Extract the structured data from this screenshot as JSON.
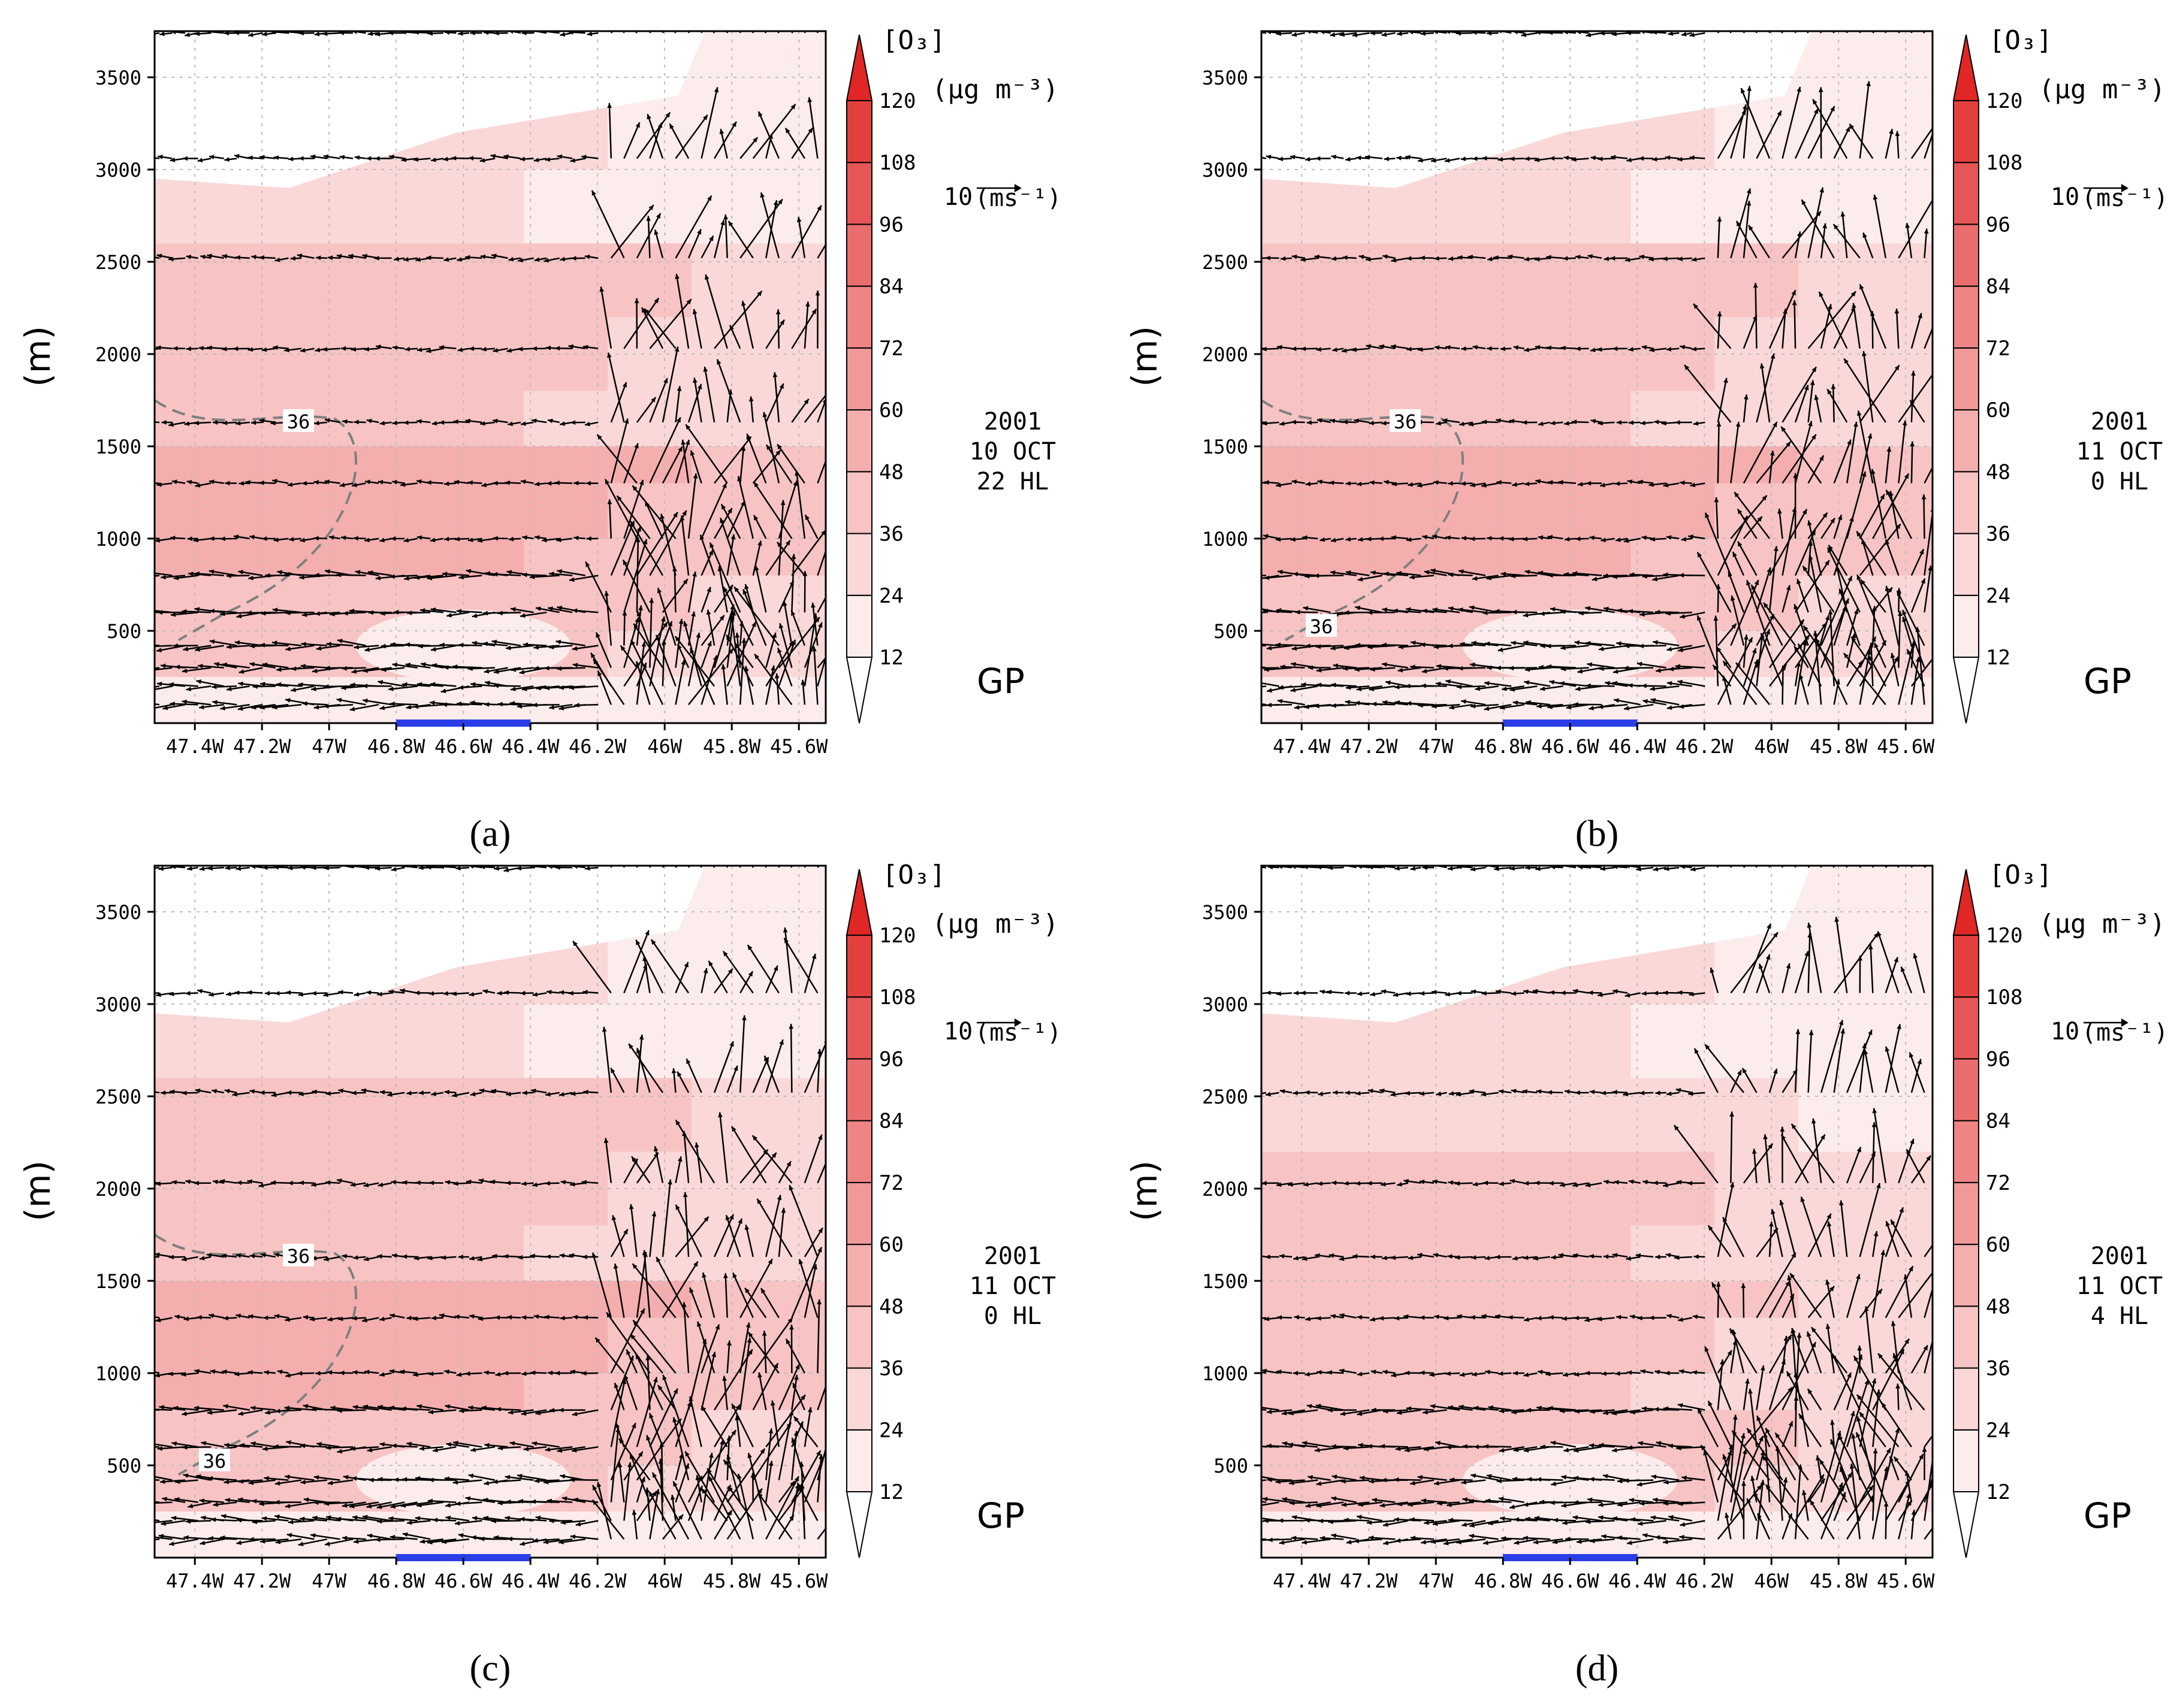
{
  "colors": {
    "shades": [
      "#ffffff",
      "#fdecec",
      "#fad8d8",
      "#f7c3c3",
      "#f4aeae",
      "#f19999",
      "#ee8484",
      "#ea6d6d",
      "#e75656",
      "#e43f3f",
      "#e12626"
    ],
    "vectors": "#000000",
    "contour36": "#7f7f7f",
    "location_bar": "#2a3ee8",
    "grid": "#bdbdbd"
  },
  "chart_data": [
    {
      "type": "vector-contour",
      "panel_label": "(a)",
      "ylabel": "(m)",
      "x_ticks": [
        "47.4W",
        "47.2W",
        "47W",
        "46.8W",
        "46.6W",
        "46.4W",
        "46.2W",
        "46W",
        "45.8W",
        "45.6W"
      ],
      "x_tick_values": [
        -47.4,
        -47.2,
        -47.0,
        -46.8,
        -46.6,
        -46.4,
        -46.2,
        -46.0,
        -45.8,
        -45.6
      ],
      "y_ticks": [
        "500",
        "1000",
        "1500",
        "2000",
        "2500",
        "3000",
        "3500"
      ],
      "y_tick_values": [
        500,
        1000,
        1500,
        2000,
        2500,
        3000,
        3500
      ],
      "xlim": [
        -47.52,
        -45.52
      ],
      "ylim": [
        0,
        3750
      ],
      "colorbar": {
        "title": "[O₃]",
        "unit": "(μg m⁻³)",
        "levels": [
          "12",
          "24",
          "36",
          "48",
          "60",
          "72",
          "84",
          "96",
          "108",
          "120"
        ]
      },
      "vector_ref": {
        "value": "10",
        "unit": "(ms⁻¹)"
      },
      "time": {
        "year": "2001",
        "day": "10  OCT",
        "hour": "22  HL"
      },
      "source": "GP",
      "contour_labels": [
        "36"
      ],
      "location_bar": [
        -46.8,
        -46.4
      ],
      "ozone_profile": [
        [
          0,
          1
        ],
        [
          250,
          3
        ],
        [
          500,
          3
        ],
        [
          800,
          4
        ],
        [
          1000,
          4
        ],
        [
          1300,
          4
        ],
        [
          1500,
          3
        ],
        [
          1800,
          3
        ],
        [
          2200,
          3
        ],
        [
          2600,
          2
        ],
        [
          3000,
          2
        ],
        [
          3400,
          1
        ],
        [
          3750,
          1
        ]
      ]
    },
    {
      "type": "vector-contour",
      "panel_label": "(b)",
      "ylabel": "(m)",
      "x_ticks": [
        "47.4W",
        "47.2W",
        "47W",
        "46.8W",
        "46.6W",
        "46.4W",
        "46.2W",
        "46W",
        "45.8W",
        "45.6W"
      ],
      "x_tick_values": [
        -47.4,
        -47.2,
        -47.0,
        -46.8,
        -46.6,
        -46.4,
        -46.2,
        -46.0,
        -45.8,
        -45.6
      ],
      "y_ticks": [
        "500",
        "1000",
        "1500",
        "2000",
        "2500",
        "3000",
        "3500"
      ],
      "y_tick_values": [
        500,
        1000,
        1500,
        2000,
        2500,
        3000,
        3500
      ],
      "xlim": [
        -47.52,
        -45.52
      ],
      "ylim": [
        0,
        3750
      ],
      "colorbar": {
        "title": "[O₃]",
        "unit": "(μg m⁻³)",
        "levels": [
          "12",
          "24",
          "36",
          "48",
          "60",
          "72",
          "84",
          "96",
          "108",
          "120"
        ]
      },
      "vector_ref": {
        "value": "10",
        "unit": "(ms⁻¹)"
      },
      "time": {
        "year": "2001",
        "day": "11  OCT",
        "hour": "0  HL"
      },
      "source": "GP",
      "contour_labels": [
        "36",
        "36"
      ],
      "location_bar": [
        -46.8,
        -46.4
      ],
      "ozone_profile": [
        [
          0,
          1
        ],
        [
          250,
          3
        ],
        [
          500,
          3
        ],
        [
          800,
          4
        ],
        [
          1000,
          4
        ],
        [
          1300,
          4
        ],
        [
          1500,
          3
        ],
        [
          1800,
          3
        ],
        [
          2200,
          3
        ],
        [
          2600,
          2
        ],
        [
          3000,
          2
        ],
        [
          3400,
          1
        ],
        [
          3750,
          1
        ]
      ]
    },
    {
      "type": "vector-contour",
      "panel_label": "(c)",
      "ylabel": "(m)",
      "x_ticks": [
        "47.4W",
        "47.2W",
        "47W",
        "46.8W",
        "46.6W",
        "46.4W",
        "46.2W",
        "46W",
        "45.8W",
        "45.6W"
      ],
      "x_tick_values": [
        -47.4,
        -47.2,
        -47.0,
        -46.8,
        -46.6,
        -46.4,
        -46.2,
        -46.0,
        -45.8,
        -45.6
      ],
      "y_ticks": [
        "500",
        "1000",
        "1500",
        "2000",
        "2500",
        "3000",
        "3500"
      ],
      "y_tick_values": [
        500,
        1000,
        1500,
        2000,
        2500,
        3000,
        3500
      ],
      "xlim": [
        -47.52,
        -45.52
      ],
      "ylim": [
        0,
        3750
      ],
      "colorbar": {
        "title": "[O₃]",
        "unit": "(μg m⁻³)",
        "levels": [
          "12",
          "24",
          "36",
          "48",
          "60",
          "72",
          "84",
          "96",
          "108",
          "120"
        ]
      },
      "vector_ref": {
        "value": "10",
        "unit": "(ms⁻¹)"
      },
      "time": {
        "year": "2001",
        "day": "11  OCT",
        "hour": "0  HL"
      },
      "source": "GP",
      "contour_labels": [
        "36",
        "36"
      ],
      "location_bar": [
        -46.8,
        -46.4
      ],
      "ozone_profile": [
        [
          0,
          1
        ],
        [
          250,
          3
        ],
        [
          500,
          3
        ],
        [
          800,
          4
        ],
        [
          1000,
          4
        ],
        [
          1300,
          4
        ],
        [
          1500,
          3
        ],
        [
          1800,
          3
        ],
        [
          2200,
          3
        ],
        [
          2600,
          2
        ],
        [
          3000,
          2
        ],
        [
          3400,
          1
        ],
        [
          3750,
          1
        ]
      ]
    },
    {
      "type": "vector-contour",
      "panel_label": "(d)",
      "ylabel": "(m)",
      "x_ticks": [
        "47.4W",
        "47.2W",
        "47W",
        "46.8W",
        "46.6W",
        "46.4W",
        "46.2W",
        "46W",
        "45.8W",
        "45.6W"
      ],
      "x_tick_values": [
        -47.4,
        -47.2,
        -47.0,
        -46.8,
        -46.6,
        -46.4,
        -46.2,
        -46.0,
        -45.8,
        -45.6
      ],
      "y_ticks": [
        "500",
        "1000",
        "1500",
        "2000",
        "2500",
        "3000",
        "3500"
      ],
      "y_tick_values": [
        500,
        1000,
        1500,
        2000,
        2500,
        3000,
        3500
      ],
      "xlim": [
        -47.52,
        -45.52
      ],
      "ylim": [
        0,
        3750
      ],
      "colorbar": {
        "title": "[O₃]",
        "unit": "(μg m⁻³)",
        "levels": [
          "12",
          "24",
          "36",
          "48",
          "60",
          "72",
          "84",
          "96",
          "108",
          "120"
        ]
      },
      "vector_ref": {
        "value": "10",
        "unit": "(ms⁻¹)"
      },
      "time": {
        "year": "2001",
        "day": "11  OCT",
        "hour": "4  HL"
      },
      "source": "GP",
      "contour_labels": [],
      "location_bar": [
        -46.8,
        -46.4
      ],
      "ozone_profile": [
        [
          0,
          1
        ],
        [
          250,
          3
        ],
        [
          500,
          3
        ],
        [
          800,
          3
        ],
        [
          1000,
          3
        ],
        [
          1300,
          3
        ],
        [
          1500,
          3
        ],
        [
          1800,
          3
        ],
        [
          2200,
          2
        ],
        [
          2600,
          2
        ],
        [
          3000,
          2
        ],
        [
          3400,
          1
        ],
        [
          3750,
          1
        ]
      ]
    }
  ]
}
